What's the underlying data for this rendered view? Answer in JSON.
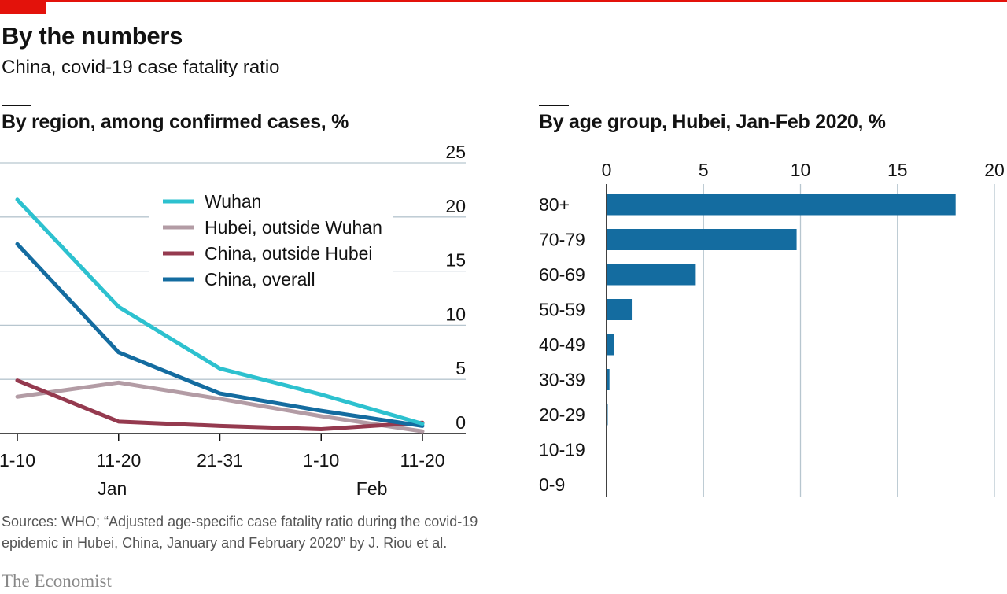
{
  "header": {
    "title": "By the numbers",
    "subtitle": "China, covid-19 case fatality ratio"
  },
  "colors": {
    "accent_red": "#e3120b",
    "grid": "#b7c6cf",
    "axis": "#121212",
    "wuhan": "#2dc1cf",
    "hubei_outside_wuhan": "#b39ca5",
    "china_outside_hubei": "#953a4f",
    "china_overall": "#146ca0",
    "bar": "#146ca0"
  },
  "chart_data": [
    {
      "type": "line",
      "title": "By region, among confirmed cases, %",
      "x": [
        "1-10",
        "11-20",
        "21-31",
        "1-10",
        "11-20"
      ],
      "x_groups": [
        "Jan",
        "Feb"
      ],
      "ylim": [
        0,
        25
      ],
      "yticks": [
        "0",
        "5",
        "10",
        "15",
        "20",
        "25"
      ],
      "grid": true,
      "legend_position": "top-center",
      "series": [
        {
          "name": "Wuhan",
          "values": [
            21.6,
            11.7,
            6.0,
            3.6,
            0.9
          ]
        },
        {
          "name": "Hubei, outside Wuhan",
          "values": [
            3.4,
            4.7,
            3.2,
            1.6,
            0.2
          ]
        },
        {
          "name": "China, outside Hubei",
          "values": [
            4.9,
            1.1,
            0.7,
            0.4,
            1.0
          ]
        },
        {
          "name": "China, overall",
          "values": [
            17.5,
            7.5,
            3.7,
            2.1,
            0.7
          ]
        }
      ]
    },
    {
      "type": "bar",
      "orientation": "horizontal",
      "title": "By age group, Hubei, Jan-Feb 2020, %",
      "categories": [
        "80+",
        "70-79",
        "60-69",
        "50-59",
        "40-49",
        "30-39",
        "20-29",
        "10-19",
        "0-9"
      ],
      "values": [
        18.0,
        9.8,
        4.6,
        1.3,
        0.4,
        0.15,
        0.06,
        0.0,
        0.0
      ],
      "xlim": [
        0,
        20
      ],
      "xticks": [
        "0",
        "5",
        "10",
        "15",
        "20"
      ],
      "grid": true
    }
  ],
  "footer": {
    "source": "Sources: WHO; “Adjusted age-specific case fatality ratio during the covid-19 epidemic in Hubei, China, January and February 2020” by J. Riou et al.",
    "logo": "The Economist"
  }
}
